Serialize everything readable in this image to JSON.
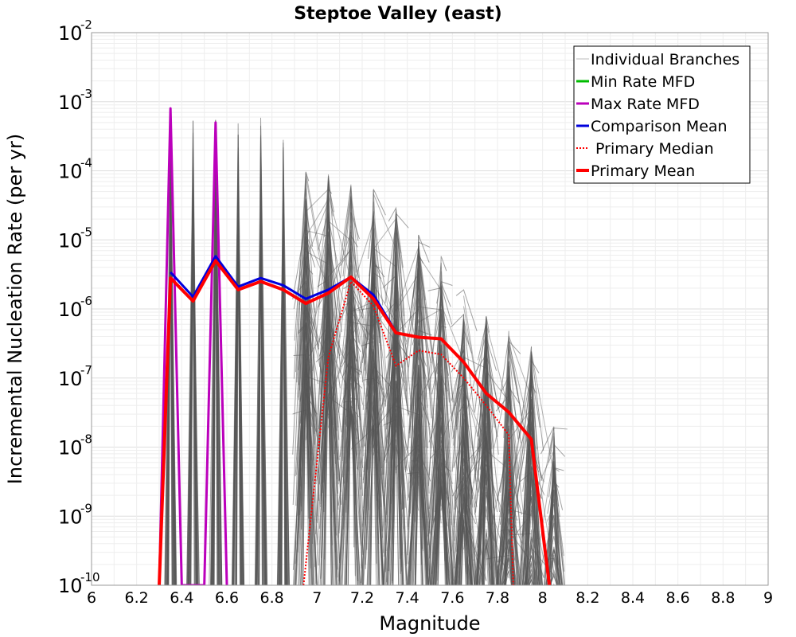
{
  "chart_data": {
    "type": "line",
    "title": "Steptoe Valley (east)",
    "xlabel": "Magnitude",
    "ylabel": "Incremental Nucleation Rate (per yr)",
    "xlim": [
      6,
      9
    ],
    "ylim_log10": [
      -10,
      -2
    ],
    "y_scale": "log",
    "grid": true,
    "legend_position": "top-right",
    "x_ticks": [
      "6",
      "6.2",
      "6.4",
      "6.6",
      "6.8",
      "7",
      "7.2",
      "7.4",
      "7.6",
      "7.8",
      "8",
      "8.2",
      "8.4",
      "8.6",
      "8.8",
      "9"
    ],
    "y_ticks": [
      {
        "base": "10",
        "exp": "-10"
      },
      {
        "base": "10",
        "exp": "-9"
      },
      {
        "base": "10",
        "exp": "-8"
      },
      {
        "base": "10",
        "exp": "-7"
      },
      {
        "base": "10",
        "exp": "-6"
      },
      {
        "base": "10",
        "exp": "-5"
      },
      {
        "base": "10",
        "exp": "-4"
      },
      {
        "base": "10",
        "exp": "-3"
      },
      {
        "base": "10",
        "exp": "-2"
      }
    ],
    "legend": [
      {
        "label": "Individual Branches",
        "color": "#bbbbbb",
        "style": "solid",
        "width": 1
      },
      {
        "label": "Min Rate MFD",
        "color": "#00bb00",
        "style": "solid",
        "width": 3
      },
      {
        "label": "Max Rate MFD",
        "color": "#bb00bb",
        "style": "solid",
        "width": 3
      },
      {
        "label": "Comparison Mean",
        "color": "#0000dd",
        "style": "solid",
        "width": 3
      },
      {
        "label": " Primary Median",
        "color": "#ff0000",
        "style": "dotted",
        "width": 2
      },
      {
        "label": "Primary Mean",
        "color": "#ff0000",
        "style": "solid",
        "width": 4
      }
    ],
    "branches_color": "#555555",
    "branch_peaks": [
      {
        "x": 6.35,
        "y": 0.0008
      },
      {
        "x": 6.45,
        "y": 0.00055
      },
      {
        "x": 6.55,
        "y": 0.001
      },
      {
        "x": 6.65,
        "y": 0.0006
      },
      {
        "x": 6.75,
        "y": 0.0006
      },
      {
        "x": 6.85,
        "y": 0.0003
      },
      {
        "x": 6.95,
        "y": 0.0001
      },
      {
        "x": 7.05,
        "y": 0.0001
      },
      {
        "x": 7.15,
        "y": 8e-05
      },
      {
        "x": 7.25,
        "y": 6e-05
      },
      {
        "x": 7.35,
        "y": 3e-05
      },
      {
        "x": 7.45,
        "y": 1.2e-05
      },
      {
        "x": 7.55,
        "y": 6e-06
      },
      {
        "x": 7.65,
        "y": 2e-06
      },
      {
        "x": 7.75,
        "y": 8e-07
      },
      {
        "x": 7.85,
        "y": 5e-07
      },
      {
        "x": 7.95,
        "y": 3e-07
      },
      {
        "x": 8.05,
        "y": 2e-08
      }
    ],
    "series": [
      {
        "name": "Max Rate MFD",
        "color": "#bb00bb",
        "x": [
          6.3,
          6.35,
          6.4,
          6.5,
          6.55,
          6.6
        ],
        "y": [
          1e-10,
          0.0008,
          1e-10,
          1e-10,
          0.0005,
          1e-10
        ]
      },
      {
        "name": "Comparison Mean",
        "color": "#0000dd",
        "x": [
          6.35,
          6.45,
          6.55,
          6.65,
          6.75,
          6.85,
          6.95,
          7.05,
          7.15,
          7.25,
          7.35
        ],
        "y": [
          3.4e-06,
          1.5e-06,
          5.8e-06,
          2.1e-06,
          2.8e-06,
          2.2e-06,
          1.4e-06,
          1.9e-06,
          2.9e-06,
          1.6e-06,
          4.6e-07
        ]
      },
      {
        "name": "Primary Median",
        "color": "#ff0000",
        "x": [
          6.94,
          7.05,
          7.15,
          7.25,
          7.35,
          7.45,
          7.55,
          7.65,
          7.75,
          7.85,
          7.87
        ],
        "y": [
          1e-10,
          2e-07,
          2.5e-06,
          1.1e-06,
          1.5e-07,
          2.5e-07,
          2.2e-07,
          1e-07,
          4e-08,
          1.5e-08,
          1e-10
        ]
      },
      {
        "name": "Primary Mean",
        "color": "#ff0000",
        "x": [
          6.3,
          6.35,
          6.45,
          6.55,
          6.65,
          6.75,
          6.85,
          6.95,
          7.05,
          7.15,
          7.25,
          7.35,
          7.45,
          7.55,
          7.65,
          7.75,
          7.85,
          7.95,
          8.03
        ],
        "y": [
          1e-10,
          2.8e-06,
          1.3e-06,
          5e-06,
          1.9e-06,
          2.5e-06,
          1.9e-06,
          1.2e-06,
          1.7e-06,
          2.9e-06,
          1.4e-06,
          4.5e-07,
          3.9e-07,
          3.7e-07,
          1.7e-07,
          6e-08,
          3.2e-08,
          1.3e-08,
          1e-10
        ]
      }
    ]
  }
}
